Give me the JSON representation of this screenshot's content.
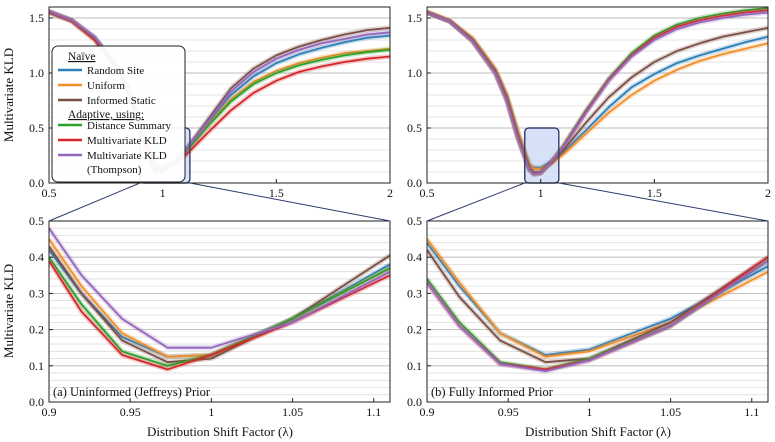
{
  "figure": {
    "ylabel_top": "Multivariate KLD",
    "ylabel_bottom": "Multivariate KLD",
    "xlabel": "Distribution Shift Factor (λ)"
  },
  "legend": {
    "group1_title": "Naïve",
    "group2_title": "Adaptive, using:",
    "items": [
      {
        "label": "Random Site",
        "color": "#2c7fb8"
      },
      {
        "label": "Uniform",
        "color": "#f28e2b"
      },
      {
        "label": "Informed Static",
        "color": "#7b4f45"
      },
      {
        "label": "Distance Summary",
        "color": "#2ca02c"
      },
      {
        "label": "Multivariate KLD",
        "color": "#d62728"
      },
      {
        "label": "Multivariate KLD",
        "label2": "(Thompson)",
        "color": "#9467bd"
      }
    ]
  },
  "captions": {
    "a": "(a) Uninformed (Jeffreys) Prior",
    "b": "(b) Fully Informed Prior"
  },
  "chart_data": [
    {
      "id": "top-left",
      "type": "line",
      "xlim": [
        0.5,
        2.0
      ],
      "ylim": [
        0.0,
        1.6
      ],
      "xticks": [
        0.5,
        1,
        1.5,
        2
      ],
      "xtick_labels": [
        "0.5",
        "1",
        "1.5",
        "2"
      ],
      "yticks": [
        0.0,
        0.5,
        1.0,
        1.5
      ],
      "ytick_labels": [
        "0.0",
        "0.5",
        "1.0",
        "1.5"
      ],
      "zoom_box": {
        "x": [
          0.9,
          1.12
        ],
        "y": [
          0.0,
          0.5
        ]
      },
      "series": [
        {
          "name": "Random Site",
          "x": [
            0.5,
            0.6,
            0.7,
            0.8,
            0.85,
            0.9,
            0.95,
            0.97,
            1.0,
            1.05,
            1.1,
            1.2,
            1.3,
            1.4,
            1.5,
            1.6,
            1.7,
            1.8,
            1.9,
            2.0
          ],
          "y": [
            1.56,
            1.48,
            1.32,
            1.06,
            0.86,
            0.55,
            0.22,
            0.14,
            0.13,
            0.19,
            0.29,
            0.55,
            0.8,
            0.97,
            1.09,
            1.17,
            1.23,
            1.28,
            1.32,
            1.34
          ]
        },
        {
          "name": "Uniform",
          "x": [
            0.5,
            0.6,
            0.7,
            0.8,
            0.85,
            0.9,
            0.95,
            0.97,
            1.0,
            1.05,
            1.1,
            1.2,
            1.3,
            1.4,
            1.5,
            1.6,
            1.7,
            1.8,
            1.9,
            2.0
          ],
          "y": [
            1.56,
            1.48,
            1.32,
            1.05,
            0.85,
            0.54,
            0.2,
            0.13,
            0.13,
            0.19,
            0.28,
            0.53,
            0.76,
            0.92,
            1.02,
            1.09,
            1.14,
            1.18,
            1.2,
            1.22
          ]
        },
        {
          "name": "Informed Static",
          "x": [
            0.5,
            0.6,
            0.7,
            0.8,
            0.85,
            0.9,
            0.95,
            0.97,
            1.0,
            1.05,
            1.1,
            1.2,
            1.3,
            1.4,
            1.5,
            1.6,
            1.7,
            1.8,
            1.9,
            2.0
          ],
          "y": [
            1.56,
            1.48,
            1.32,
            1.05,
            0.85,
            0.53,
            0.19,
            0.12,
            0.12,
            0.19,
            0.3,
            0.58,
            0.86,
            1.04,
            1.16,
            1.24,
            1.3,
            1.35,
            1.39,
            1.41
          ]
        },
        {
          "name": "Distance Summary",
          "x": [
            0.5,
            0.6,
            0.7,
            0.8,
            0.85,
            0.9,
            0.95,
            0.97,
            1.0,
            1.05,
            1.1,
            1.2,
            1.3,
            1.4,
            1.5,
            1.6,
            1.7,
            1.8,
            1.9,
            2.0
          ],
          "y": [
            1.55,
            1.47,
            1.31,
            1.04,
            0.84,
            0.52,
            0.17,
            0.11,
            0.12,
            0.19,
            0.28,
            0.52,
            0.74,
            0.9,
            1.0,
            1.07,
            1.12,
            1.16,
            1.19,
            1.21
          ]
        },
        {
          "name": "Multivariate KLD",
          "x": [
            0.5,
            0.6,
            0.7,
            0.8,
            0.85,
            0.9,
            0.95,
            0.97,
            1.0,
            1.05,
            1.1,
            1.2,
            1.3,
            1.4,
            1.5,
            1.6,
            1.7,
            1.8,
            1.9,
            2.0
          ],
          "y": [
            1.55,
            1.47,
            1.3,
            1.03,
            0.83,
            0.51,
            0.16,
            0.1,
            0.11,
            0.17,
            0.25,
            0.46,
            0.66,
            0.82,
            0.93,
            1.01,
            1.06,
            1.1,
            1.13,
            1.15
          ]
        },
        {
          "name": "Multivariate KLD (Thompson)",
          "x": [
            0.5,
            0.6,
            0.7,
            0.8,
            0.85,
            0.9,
            0.95,
            0.97,
            1.0,
            1.05,
            1.1,
            1.2,
            1.3,
            1.4,
            1.5,
            1.6,
            1.7,
            1.8,
            1.9,
            2.0
          ],
          "y": [
            1.56,
            1.48,
            1.33,
            1.07,
            0.88,
            0.58,
            0.24,
            0.16,
            0.15,
            0.2,
            0.3,
            0.56,
            0.83,
            1.01,
            1.13,
            1.21,
            1.27,
            1.31,
            1.35,
            1.37
          ]
        }
      ]
    },
    {
      "id": "top-right",
      "type": "line",
      "xlim": [
        0.5,
        2.0
      ],
      "ylim": [
        0.0,
        1.6
      ],
      "xticks": [
        0.5,
        1,
        1.5,
        2
      ],
      "xtick_labels": [
        "0.5",
        "1",
        "1.5",
        "2"
      ],
      "yticks": [
        0.0,
        0.5,
        1.0,
        1.5
      ],
      "ytick_labels": [
        "0.0",
        "0.5",
        "1.0",
        "1.5"
      ],
      "zoom_box": {
        "x": [
          0.93,
          1.08
        ],
        "y": [
          0.0,
          0.5
        ]
      },
      "series": [
        {
          "name": "Random Site",
          "x": [
            0.5,
            0.6,
            0.7,
            0.8,
            0.85,
            0.9,
            0.95,
            0.97,
            1.0,
            1.05,
            1.1,
            1.2,
            1.3,
            1.4,
            1.5,
            1.6,
            1.7,
            1.8,
            1.9,
            2.0
          ],
          "y": [
            1.55,
            1.47,
            1.31,
            1.03,
            0.8,
            0.46,
            0.17,
            0.14,
            0.14,
            0.2,
            0.28,
            0.48,
            0.69,
            0.87,
            0.99,
            1.09,
            1.16,
            1.22,
            1.28,
            1.33
          ]
        },
        {
          "name": "Uniform",
          "x": [
            0.5,
            0.6,
            0.7,
            0.8,
            0.85,
            0.9,
            0.95,
            0.97,
            1.0,
            1.05,
            1.1,
            1.2,
            1.3,
            1.4,
            1.5,
            1.6,
            1.7,
            1.8,
            1.9,
            2.0
          ],
          "y": [
            1.56,
            1.48,
            1.32,
            1.04,
            0.81,
            0.47,
            0.17,
            0.13,
            0.13,
            0.18,
            0.26,
            0.45,
            0.64,
            0.8,
            0.93,
            1.03,
            1.11,
            1.17,
            1.22,
            1.27
          ]
        },
        {
          "name": "Informed Static",
          "x": [
            0.5,
            0.6,
            0.7,
            0.8,
            0.85,
            0.9,
            0.95,
            0.97,
            1.0,
            1.05,
            1.1,
            1.2,
            1.3,
            1.4,
            1.5,
            1.6,
            1.7,
            1.8,
            1.9,
            2.0
          ],
          "y": [
            1.55,
            1.47,
            1.3,
            1.02,
            0.78,
            0.43,
            0.14,
            0.1,
            0.1,
            0.19,
            0.3,
            0.55,
            0.78,
            0.96,
            1.1,
            1.2,
            1.27,
            1.33,
            1.37,
            1.41
          ]
        },
        {
          "name": "Distance Summary",
          "x": [
            0.5,
            0.6,
            0.7,
            0.8,
            0.85,
            0.9,
            0.95,
            0.97,
            1.0,
            1.05,
            1.1,
            1.2,
            1.3,
            1.4,
            1.5,
            1.6,
            1.7,
            1.8,
            1.9,
            2.0
          ],
          "y": [
            1.55,
            1.47,
            1.29,
            1.0,
            0.76,
            0.41,
            0.12,
            0.08,
            0.09,
            0.2,
            0.34,
            0.66,
            0.95,
            1.18,
            1.34,
            1.44,
            1.5,
            1.54,
            1.57,
            1.59
          ]
        },
        {
          "name": "Multivariate KLD",
          "x": [
            0.5,
            0.6,
            0.7,
            0.8,
            0.85,
            0.9,
            0.95,
            0.97,
            1.0,
            1.05,
            1.1,
            1.2,
            1.3,
            1.4,
            1.5,
            1.6,
            1.7,
            1.8,
            1.9,
            2.0
          ],
          "y": [
            1.55,
            1.47,
            1.29,
            1.0,
            0.76,
            0.41,
            0.12,
            0.08,
            0.09,
            0.2,
            0.33,
            0.65,
            0.94,
            1.16,
            1.32,
            1.42,
            1.48,
            1.52,
            1.55,
            1.57
          ]
        },
        {
          "name": "Multivariate KLD (Thompson)",
          "x": [
            0.5,
            0.6,
            0.7,
            0.8,
            0.85,
            0.9,
            0.95,
            0.97,
            1.0,
            1.05,
            1.1,
            1.2,
            1.3,
            1.4,
            1.5,
            1.6,
            1.7,
            1.8,
            1.9,
            2.0
          ],
          "y": [
            1.55,
            1.47,
            1.29,
            1.0,
            0.75,
            0.4,
            0.12,
            0.08,
            0.09,
            0.2,
            0.33,
            0.64,
            0.93,
            1.15,
            1.3,
            1.4,
            1.46,
            1.5,
            1.53,
            1.55
          ]
        }
      ]
    },
    {
      "id": "bottom-left",
      "type": "line",
      "xlim": [
        0.9,
        1.11
      ],
      "ylim": [
        0.0,
        0.5
      ],
      "xticks": [
        0.9,
        0.95,
        1,
        1.05,
        1.1
      ],
      "xtick_labels": [
        "0.9",
        "0.95",
        "1",
        "1.05",
        "1.1"
      ],
      "yticks": [
        0.0,
        0.1,
        0.2,
        0.3,
        0.4,
        0.5
      ],
      "ytick_labels": [
        "0.0",
        "0.1",
        "0.2",
        "0.3",
        "0.4",
        "0.5"
      ],
      "series": [
        {
          "name": "Random Site",
          "x": [
            0.9,
            0.92,
            0.945,
            0.973,
            1.0,
            1.05,
            1.11
          ],
          "y": [
            0.42,
            0.3,
            0.18,
            0.125,
            0.13,
            0.23,
            0.38
          ]
        },
        {
          "name": "Uniform",
          "x": [
            0.9,
            0.92,
            0.945,
            0.973,
            1.0,
            1.05,
            1.11
          ],
          "y": [
            0.45,
            0.32,
            0.19,
            0.125,
            0.13,
            0.23,
            0.37
          ]
        },
        {
          "name": "Informed Static",
          "x": [
            0.9,
            0.92,
            0.945,
            0.973,
            1.0,
            1.05,
            1.11
          ],
          "y": [
            0.43,
            0.3,
            0.17,
            0.11,
            0.12,
            0.23,
            0.405
          ]
        },
        {
          "name": "Distance Summary",
          "x": [
            0.9,
            0.92,
            0.945,
            0.973,
            1.0,
            1.05,
            1.11
          ],
          "y": [
            0.4,
            0.27,
            0.14,
            0.1,
            0.13,
            0.23,
            0.37
          ]
        },
        {
          "name": "Multivariate KLD",
          "x": [
            0.9,
            0.92,
            0.945,
            0.973,
            1.0,
            1.05,
            1.11
          ],
          "y": [
            0.39,
            0.25,
            0.13,
            0.09,
            0.13,
            0.22,
            0.35
          ]
        },
        {
          "name": "Multivariate KLD (Thompson)",
          "x": [
            0.9,
            0.92,
            0.945,
            0.973,
            1.0,
            1.05,
            1.11
          ],
          "y": [
            0.48,
            0.35,
            0.23,
            0.15,
            0.15,
            0.22,
            0.36
          ]
        }
      ]
    },
    {
      "id": "bottom-right",
      "type": "line",
      "xlim": [
        0.9,
        1.11
      ],
      "ylim": [
        0.0,
        0.5
      ],
      "xticks": [
        0.9,
        0.95,
        1,
        1.05,
        1.1
      ],
      "xtick_labels": [
        "0.9",
        "0.95",
        "1",
        "1.05",
        "1.1"
      ],
      "yticks": [
        0.0,
        0.1,
        0.2,
        0.3,
        0.4,
        0.5
      ],
      "ytick_labels": [
        "0.0",
        "0.1",
        "0.2",
        "0.3",
        "0.4",
        "0.5"
      ],
      "series": [
        {
          "name": "Random Site",
          "x": [
            0.9,
            0.92,
            0.945,
            0.973,
            1.0,
            1.05,
            1.11
          ],
          "y": [
            0.44,
            0.32,
            0.19,
            0.13,
            0.145,
            0.23,
            0.375
          ]
        },
        {
          "name": "Uniform",
          "x": [
            0.9,
            0.92,
            0.945,
            0.973,
            1.0,
            1.05,
            1.11
          ],
          "y": [
            0.45,
            0.33,
            0.19,
            0.125,
            0.14,
            0.22,
            0.36
          ]
        },
        {
          "name": "Informed Static",
          "x": [
            0.9,
            0.92,
            0.945,
            0.973,
            1.0,
            1.05,
            1.11
          ],
          "y": [
            0.42,
            0.29,
            0.17,
            0.11,
            0.12,
            0.22,
            0.4
          ]
        },
        {
          "name": "Distance Summary",
          "x": [
            0.9,
            0.92,
            0.945,
            0.973,
            1.0,
            1.05,
            1.11
          ],
          "y": [
            0.34,
            0.22,
            0.11,
            0.09,
            0.12,
            0.21,
            0.39
          ]
        },
        {
          "name": "Multivariate KLD",
          "x": [
            0.9,
            0.92,
            0.945,
            0.973,
            1.0,
            1.05,
            1.11
          ],
          "y": [
            0.33,
            0.21,
            0.105,
            0.09,
            0.115,
            0.21,
            0.4
          ]
        },
        {
          "name": "Multivariate KLD (Thompson)",
          "x": [
            0.9,
            0.92,
            0.945,
            0.973,
            1.0,
            1.05,
            1.11
          ],
          "y": [
            0.33,
            0.21,
            0.105,
            0.085,
            0.115,
            0.21,
            0.39
          ]
        }
      ]
    }
  ]
}
